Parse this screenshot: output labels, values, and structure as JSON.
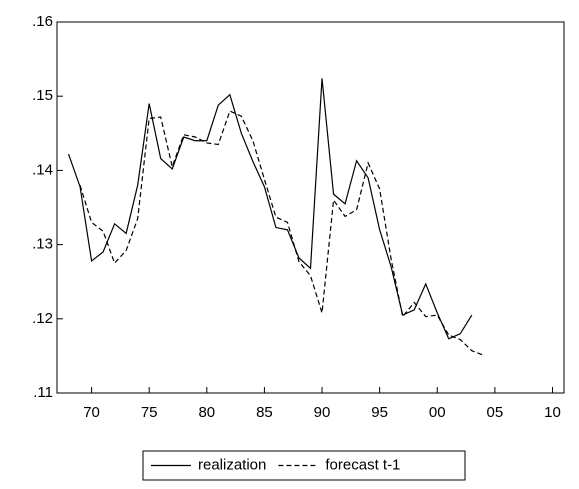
{
  "chart_data": {
    "type": "line",
    "x": [
      1968,
      1969,
      1970,
      1971,
      1972,
      1973,
      1974,
      1975,
      1976,
      1977,
      1978,
      1979,
      1980,
      1981,
      1982,
      1983,
      1984,
      1985,
      1986,
      1987,
      1988,
      1989,
      1990,
      1991,
      1992,
      1993,
      1994,
      1995,
      1996,
      1997,
      1998,
      1999,
      2000,
      2001,
      2002,
      2003,
      2004
    ],
    "series": [
      {
        "name": "realization",
        "color": "#000000",
        "dash": "solid",
        "values": [
          0.1422,
          0.1378,
          0.1278,
          0.129,
          0.1328,
          0.1315,
          0.138,
          0.149,
          0.1416,
          0.1402,
          0.1445,
          0.144,
          0.144,
          0.1488,
          0.1502,
          0.145,
          0.1412,
          0.1378,
          0.1323,
          0.132,
          0.1282,
          0.1268,
          0.1524,
          0.1368,
          0.1355,
          0.1413,
          0.139,
          0.132,
          0.127,
          0.1205,
          0.1212,
          0.1247,
          0.1208,
          0.1173,
          0.118,
          0.1205,
          null
        ]
      },
      {
        "name": "forecast t-1",
        "color": "#000000",
        "dash": "dashed",
        "values": [
          null,
          0.138,
          0.133,
          0.1318,
          0.1275,
          0.1292,
          0.1335,
          0.147,
          0.1472,
          0.1405,
          0.1448,
          0.1445,
          0.1437,
          0.1435,
          0.148,
          0.1473,
          0.144,
          0.1388,
          0.1337,
          0.133,
          0.1277,
          0.1258,
          0.1208,
          0.136,
          0.1338,
          0.1347,
          0.141,
          0.1375,
          0.128,
          0.1203,
          0.1222,
          0.1203,
          0.1205,
          0.1178,
          0.1172,
          0.1157,
          0.1151
        ]
      }
    ],
    "xlim": [
      1967,
      2011
    ],
    "xticks": [
      {
        "value": 1970,
        "label": "70"
      },
      {
        "value": 1975,
        "label": "75"
      },
      {
        "value": 1980,
        "label": "80"
      },
      {
        "value": 1985,
        "label": "85"
      },
      {
        "value": 1990,
        "label": "90"
      },
      {
        "value": 1995,
        "label": "95"
      },
      {
        "value": 2000,
        "label": "00"
      },
      {
        "value": 2005,
        "label": "05"
      },
      {
        "value": 2010,
        "label": "10"
      }
    ],
    "ylim": [
      0.11,
      0.16
    ],
    "yticks": [
      {
        "value": 0.11,
        "label": ".11"
      },
      {
        "value": 0.12,
        "label": ".12"
      },
      {
        "value": 0.13,
        "label": ".13"
      },
      {
        "value": 0.14,
        "label": ".14"
      },
      {
        "value": 0.15,
        "label": ".15"
      },
      {
        "value": 0.16,
        "label": ".16"
      }
    ],
    "grid": false,
    "legend": "bottom"
  }
}
